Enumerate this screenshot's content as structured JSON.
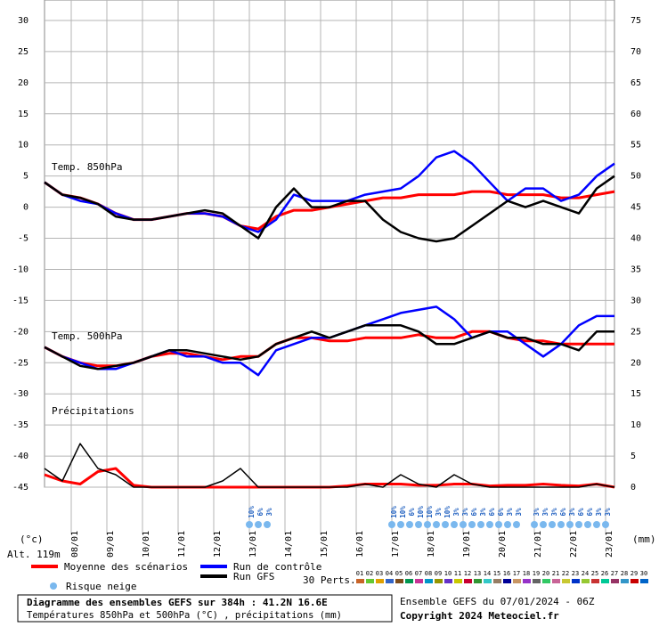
{
  "chart_data": {
    "type": "line",
    "x": [
      0,
      12,
      24,
      36,
      48,
      60,
      72,
      84,
      96,
      108,
      120,
      132,
      144,
      156,
      168,
      180,
      192,
      204,
      216,
      228,
      240,
      252,
      264,
      276,
      288,
      300,
      312,
      324,
      336,
      348,
      360,
      372,
      384
    ],
    "xlim": [
      0,
      384
    ],
    "xticks": [
      {
        "value": 18,
        "label": "08/01"
      },
      {
        "value": 42,
        "label": "09/01"
      },
      {
        "value": 66,
        "label": "10/01"
      },
      {
        "value": 90,
        "label": "11/01"
      },
      {
        "value": 114,
        "label": "12/01"
      },
      {
        "value": 138,
        "label": "13/01"
      },
      {
        "value": 162,
        "label": "14/01"
      },
      {
        "value": 186,
        "label": "15/01"
      },
      {
        "value": 210,
        "label": "16/01"
      },
      {
        "value": 234,
        "label": "17/01"
      },
      {
        "value": 258,
        "label": "18/01"
      },
      {
        "value": 282,
        "label": "19/01"
      },
      {
        "value": 306,
        "label": "20/01"
      },
      {
        "value": 330,
        "label": "21/01"
      },
      {
        "value": 354,
        "label": "22/01"
      },
      {
        "value": 378,
        "label": "23/01"
      }
    ],
    "ylim": [
      -45,
      30
    ],
    "yticks": [
      30,
      25,
      20,
      15,
      10,
      5,
      0,
      -5,
      -10,
      -15,
      -20,
      -25,
      -30,
      -35,
      -40,
      -45
    ],
    "y2lim": [
      0,
      75
    ],
    "y2ticks": [
      75,
      70,
      65,
      60,
      55,
      50,
      45,
      40,
      35,
      30,
      25,
      20,
      15,
      10,
      5,
      0
    ],
    "grid": true,
    "y_label": "(°c)",
    "y2_label": "(mm)",
    "altitude": "Alt. 119m",
    "annotations": [
      "Temp. 850hPa",
      "Temp. 500hPa",
      "Précipitations"
    ],
    "series": [
      {
        "name": "Moyenne des scénarios",
        "color": "#ff0000",
        "width": 3,
        "values": [
          4,
          2,
          1.5,
          0.5,
          -1,
          -2,
          -2,
          -1.5,
          -1,
          -1,
          -1.5,
          -3,
          -3.5,
          -1.5,
          -0.5,
          -0.5,
          0,
          0.5,
          1,
          1.5,
          1.5,
          2,
          2,
          2,
          2.5,
          2.5,
          2,
          2,
          2,
          1.5,
          1.5,
          2,
          2.5
        ]
      },
      {
        "name": "Run de contrôle",
        "color": "#0000ff",
        "width": 2.5,
        "values": [
          4,
          2,
          1,
          0.5,
          -1,
          -2,
          -2,
          -1.5,
          -1,
          -1,
          -1.5,
          -3,
          -4,
          -2,
          2,
          1,
          1,
          1,
          2,
          2.5,
          3,
          5,
          8,
          9,
          7,
          4,
          1,
          3,
          3,
          1,
          2,
          5,
          7
        ]
      },
      {
        "name": "Run GFS",
        "color": "#000000",
        "width": 2.5,
        "values": [
          4,
          2,
          1.5,
          0.5,
          -1.5,
          -2,
          -2,
          -1.5,
          -1,
          -0.5,
          -1,
          -3,
          -5,
          0,
          3,
          0,
          0,
          1,
          1,
          -2,
          -4,
          -5,
          -5.5,
          -5,
          -3,
          -1,
          1,
          0,
          1,
          0,
          -1,
          3,
          5
        ]
      },
      {
        "color": "#ff0000",
        "width": 3,
        "values": [
          -22.5,
          -24,
          -25,
          -25.5,
          -25.5,
          -25,
          -24,
          -23.5,
          -23.5,
          -24,
          -24.5,
          -24,
          -24,
          -22,
          -21,
          -21,
          -21.5,
          -21.5,
          -21,
          -21,
          -21,
          -20.5,
          -21,
          -21,
          -20,
          -20,
          -21,
          -21.5,
          -21.5,
          -22,
          -22,
          -22,
          -22
        ]
      },
      {
        "color": "#0000ff",
        "width": 2.5,
        "values": [
          -22.5,
          -24,
          -25,
          -26,
          -26,
          -25,
          -24,
          -23,
          -24,
          -24,
          -25,
          -25,
          -27,
          -23,
          -22,
          -21,
          -21,
          -20,
          -19,
          -18,
          -17,
          -16.5,
          -16,
          -18,
          -21,
          -20,
          -20,
          -22,
          -24,
          -22,
          -19,
          -17.5,
          -17.5
        ]
      },
      {
        "color": "#000000",
        "width": 2.5,
        "values": [
          -22.5,
          -24,
          -25.5,
          -26,
          -25.5,
          -25,
          -24,
          -23,
          -23,
          -23.5,
          -24,
          -24.5,
          -24,
          -22,
          -21,
          -20,
          -21,
          -20,
          -19,
          -19,
          -19,
          -20,
          -22,
          -22,
          -21,
          -20,
          -21,
          -21,
          -22,
          -22,
          -23,
          -20,
          -20
        ]
      },
      {
        "color": "#ff0000",
        "width": 3,
        "axis": "y2",
        "values": [
          2,
          1,
          0.5,
          2.5,
          3,
          0.3,
          0,
          0,
          0,
          0,
          0,
          0,
          0,
          0,
          0,
          0,
          0,
          0.2,
          0.5,
          0.5,
          0.5,
          0.3,
          0.3,
          0.5,
          0.5,
          0.2,
          0.3,
          0.3,
          0.5,
          0.3,
          0.2,
          0.5,
          0
        ]
      },
      {
        "color": "#000000",
        "width": 1.5,
        "axis": "y2",
        "values": [
          3,
          1,
          7,
          3,
          2,
          0,
          0,
          0,
          0,
          0,
          1,
          3,
          0,
          0,
          0,
          0,
          0,
          0,
          0.5,
          0,
          2,
          0.5,
          0,
          2,
          0.5,
          0,
          0,
          0,
          0,
          0,
          0,
          0.5,
          0
        ]
      }
    ],
    "snow_risk": {
      "label": "Risque neige",
      "x": [
        138,
        144,
        150,
        234,
        240,
        246,
        252,
        258,
        264,
        270,
        276,
        282,
        288,
        294,
        300,
        306,
        312,
        318,
        330,
        336,
        342,
        348,
        354,
        360,
        366,
        372,
        378
      ],
      "labels": [
        "10%",
        "6%",
        "3%",
        "10%",
        "10%",
        "6%",
        "10%",
        "10%",
        "3%",
        "10%",
        "3%",
        "3%",
        "6%",
        "3%",
        "6%",
        "6%",
        "3%",
        "3%",
        "3%",
        "3%",
        "3%",
        "6%",
        "3%",
        "6%",
        "6%",
        "3%",
        "3%"
      ]
    },
    "perturbations": {
      "label": "30 Perts.",
      "names": [
        "01",
        "02",
        "03",
        "04",
        "05",
        "06",
        "07",
        "08",
        "09",
        "10",
        "11",
        "12",
        "13",
        "14",
        "15",
        "16",
        "17",
        "18",
        "19",
        "20",
        "21",
        "22",
        "23",
        "24",
        "25",
        "26",
        "27",
        "28",
        "29",
        "30"
      ],
      "colors": [
        "#c86428",
        "#64c832",
        "#e0a000",
        "#3264c8",
        "#7d4b19",
        "#009650",
        "#c83296",
        "#0096c8",
        "#969600",
        "#6432c8",
        "#c8c800",
        "#c80032",
        "#329632",
        "#32c8c8",
        "#967d64",
        "#000096",
        "#c89664",
        "#9632c8",
        "#646464",
        "#32c864",
        "#c86496",
        "#c8c832",
        "#0032c8",
        "#96c832",
        "#c83232",
        "#00c896",
        "#963264",
        "#3296c8",
        "#c80000",
        "#0064c8"
      ]
    },
    "title": "Diagramme des ensembles GEFS sur 384h : 41.2N 16.6E",
    "subtitle": "Températures 850hPa et 500hPa (°C) , précipitations (mm)",
    "run_info": "Ensemble GEFS du 07/01/2024 - 06Z",
    "copyright": "Copyright 2024 Meteociel.fr"
  }
}
